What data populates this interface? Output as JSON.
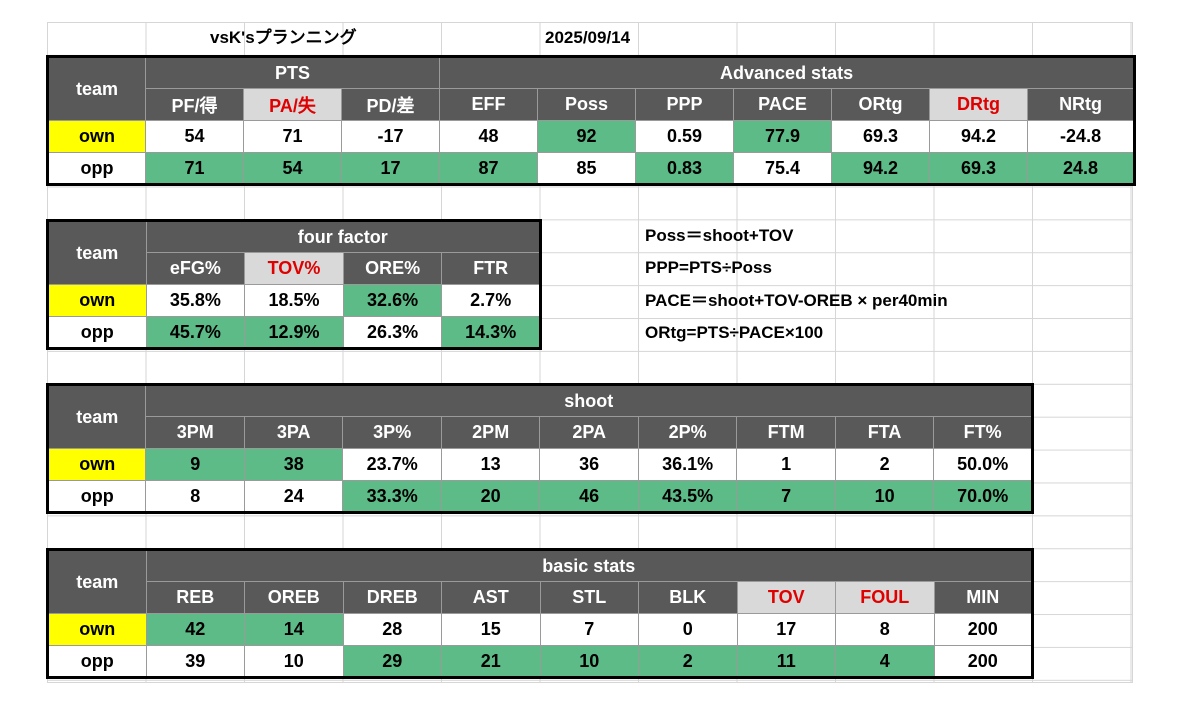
{
  "title": "vsK'sプランニング",
  "date": "2025/09/14",
  "team_label": "team",
  "advanced": {
    "group_pts": "PTS",
    "group_adv": "Advanced stats",
    "headers": [
      "PF/得",
      "PA/失",
      "PD/差",
      "EFF",
      "Poss",
      "PPP",
      "PACE",
      "ORtg",
      "DRtg",
      "NRtg"
    ],
    "rows": [
      {
        "team": "own",
        "values": [
          "54",
          "71",
          "-17",
          "48",
          "92",
          "0.59",
          "77.9",
          "69.3",
          "94.2",
          "-24.8"
        ]
      },
      {
        "team": "opp",
        "values": [
          "71",
          "54",
          "17",
          "87",
          "85",
          "0.83",
          "75.4",
          "94.2",
          "69.3",
          "24.8"
        ]
      }
    ]
  },
  "four_factor": {
    "group": "four factor",
    "headers": [
      "eFG%",
      "TOV%",
      "ORE%",
      "FTR"
    ],
    "rows": [
      {
        "team": "own",
        "values": [
          "35.8%",
          "18.5%",
          "32.6%",
          "2.7%"
        ]
      },
      {
        "team": "opp",
        "values": [
          "45.7%",
          "12.9%",
          "26.3%",
          "14.3%"
        ]
      }
    ]
  },
  "formulas": [
    "Poss＝shoot+TOV",
    "PPP=PTS÷Poss",
    "PACE＝shoot+TOV-OREB × per40min",
    "ORtg=PTS÷PACE×100"
  ],
  "shoot": {
    "group": "shoot",
    "headers": [
      "3PM",
      "3PA",
      "3P%",
      "2PM",
      "2PA",
      "2P%",
      "FTM",
      "FTA",
      "FT%"
    ],
    "rows": [
      {
        "team": "own",
        "values": [
          "9",
          "38",
          "23.7%",
          "13",
          "36",
          "36.1%",
          "1",
          "2",
          "50.0%"
        ]
      },
      {
        "team": "opp",
        "values": [
          "8",
          "24",
          "33.3%",
          "20",
          "46",
          "43.5%",
          "7",
          "10",
          "70.0%"
        ]
      }
    ]
  },
  "basic": {
    "group": "basic stats",
    "headers": [
      "REB",
      "OREB",
      "DREB",
      "AST",
      "STL",
      "BLK",
      "TOV",
      "FOUL",
      "MIN"
    ],
    "rows": [
      {
        "team": "own",
        "values": [
          "42",
          "14",
          "28",
          "15",
          "7",
          "0",
          "17",
          "8",
          "200"
        ]
      },
      {
        "team": "opp",
        "values": [
          "39",
          "10",
          "29",
          "21",
          "10",
          "2",
          "11",
          "4",
          "200"
        ]
      }
    ]
  },
  "colors": {
    "header_bg": "#595959",
    "header_text": "#ffffff",
    "negative_header_bg": "#d9d9d9",
    "negative_header_text": "#e00000",
    "own_team_bg": "#ffff00",
    "better_value_bg": "#5dbb88"
  }
}
